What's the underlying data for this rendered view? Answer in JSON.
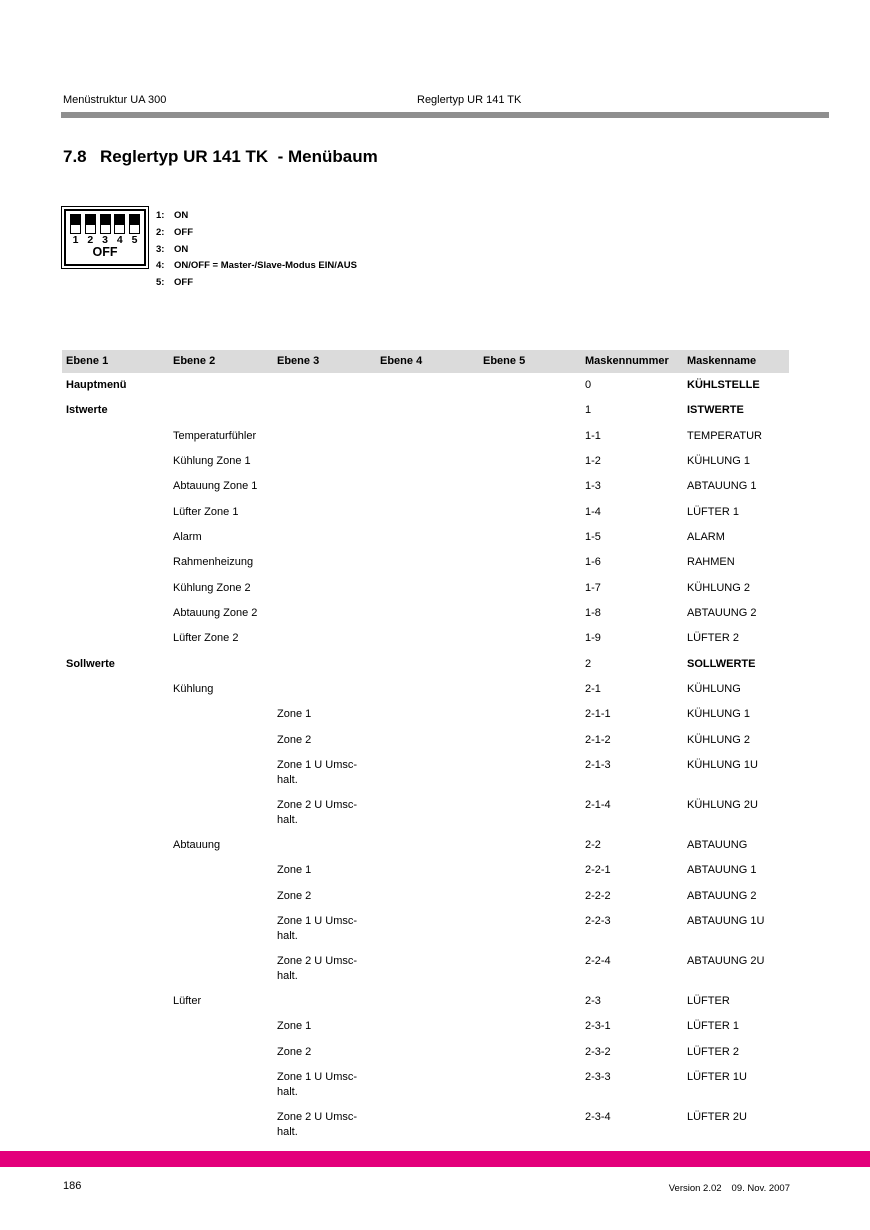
{
  "header": {
    "left": "Menüstruktur UA 300",
    "center": "Reglertyp UR 141 TK"
  },
  "heading": {
    "number": "7.8",
    "title": "Reglertyp UR 141 TK  - Menübaum"
  },
  "dip_switch": {
    "numbers": [
      "1",
      "2",
      "3",
      "4",
      "5"
    ],
    "off_label": "OFF",
    "legend": [
      {
        "num": "1:",
        "text": "ON"
      },
      {
        "num": "2:",
        "text": "OFF"
      },
      {
        "num": "3:",
        "text": "ON"
      },
      {
        "num": "4:",
        "text": "ON/OFF = Master-/Slave-Modus EIN/AUS"
      },
      {
        "num": "5:",
        "text": "OFF"
      }
    ]
  },
  "table": {
    "headers": [
      "Ebene 1",
      "Ebene 2",
      "Ebene 3",
      "Ebene 4",
      "Ebene 5",
      "Maskennummer",
      "Maskenname"
    ],
    "rows": [
      {
        "e1": "Hauptmenü",
        "num": "0",
        "name": "KÜHLSTELLE",
        "bold": true
      },
      {
        "e1": "Istwerte",
        "num": "1",
        "name": "ISTWERTE",
        "bold": true
      },
      {
        "e2": "Temperaturfühler",
        "num": "1-1",
        "name": "TEMPERATUR"
      },
      {
        "e2": "Kühlung Zone 1",
        "num": "1-2",
        "name": "KÜHLUNG 1"
      },
      {
        "e2": "Abtauung Zone 1",
        "num": "1-3",
        "name": "ABTAUUNG 1"
      },
      {
        "e2": "Lüfter Zone 1",
        "num": "1-4",
        "name": "LÜFTER 1"
      },
      {
        "e2": "Alarm",
        "num": "1-5",
        "name": "ALARM"
      },
      {
        "e2": "Rahmenheizung",
        "num": "1-6",
        "name": "RAHMEN"
      },
      {
        "e2": "Kühlung Zone 2",
        "num": "1-7",
        "name": "KÜHLUNG 2"
      },
      {
        "e2": "Abtauung Zone 2",
        "num": "1-8",
        "name": "ABTAUUNG 2"
      },
      {
        "e2": "Lüfter Zone 2",
        "num": "1-9",
        "name": "LÜFTER 2"
      },
      {
        "e1": "Sollwerte",
        "num": "2",
        "name": "SOLLWERTE",
        "bold": true
      },
      {
        "e2": "Kühlung",
        "num": "2-1",
        "name": "KÜHLUNG"
      },
      {
        "e3": "Zone 1",
        "num": "2-1-1",
        "name": "KÜHLUNG 1"
      },
      {
        "e3": "Zone 2",
        "num": "2-1-2",
        "name": "KÜHLUNG 2"
      },
      {
        "e3": "Zone 1 U Umsc-",
        "e3b": "halt.",
        "num": "2-1-3",
        "name": "KÜHLUNG 1U"
      },
      {
        "e3": "Zone 2 U Umsc-",
        "e3b": "halt.",
        "num": "2-1-4",
        "name": "KÜHLUNG 2U"
      },
      {
        "e2": "Abtauung",
        "num": "2-2",
        "name": "ABTAUUNG"
      },
      {
        "e3": "Zone 1",
        "num": "2-2-1",
        "name": "ABTAUUNG 1"
      },
      {
        "e3": "Zone 2",
        "num": "2-2-2",
        "name": "ABTAUUNG 2"
      },
      {
        "e3": "Zone 1 U Umsc-",
        "e3b": "halt.",
        "num": "2-2-3",
        "name": "ABTAUUNG 1U"
      },
      {
        "e3": "Zone 2 U Umsc-",
        "e3b": "halt.",
        "num": "2-2-4",
        "name": "ABTAUUNG 2U"
      },
      {
        "e2": "Lüfter",
        "num": "2-3",
        "name": "LÜFTER"
      },
      {
        "e3": "Zone 1",
        "num": "2-3-1",
        "name": "LÜFTER 1"
      },
      {
        "e3": "Zone 2",
        "num": "2-3-2",
        "name": "LÜFTER 2"
      },
      {
        "e3": "Zone 1 U Umsc-",
        "e3b": "halt.",
        "num": "2-3-3",
        "name": "LÜFTER 1U"
      },
      {
        "e3": "Zone 2 U Umsc-",
        "e3b": "halt.",
        "num": "2-3-4",
        "name": "LÜFTER 2U"
      }
    ]
  },
  "footer": {
    "page_number": "186",
    "version": "Version 2.02",
    "date": "09. Nov. 2007"
  },
  "colors": {
    "accent_magenta": "#e3007b",
    "header_rule_gray": "#8f8f8f",
    "table_header_bg": "#dbdbdb"
  }
}
